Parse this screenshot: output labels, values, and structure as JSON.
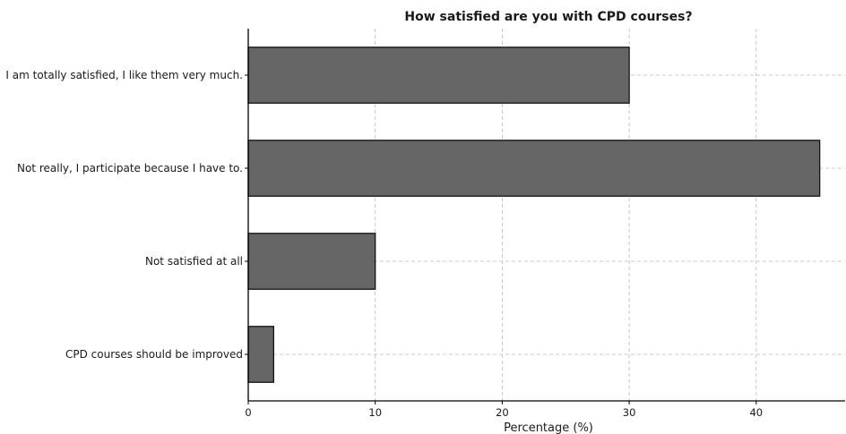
{
  "chart_data": {
    "type": "bar",
    "orientation": "horizontal",
    "title": "How satisfied are you with CPD courses?",
    "xlabel": "Percentage (%)",
    "ylabel": "",
    "categories": [
      "I am totally satisfied, I like them very much.",
      "Not really, I participate because I have to.",
      "Not satisfied at all",
      "CPD courses should be improved"
    ],
    "values": [
      30,
      45,
      10,
      2
    ],
    "xlim": [
      0,
      47
    ],
    "xticks": [
      0,
      10,
      20,
      30,
      40
    ],
    "grid": true,
    "bar_color": "#666666",
    "edge_color": "#111111"
  }
}
